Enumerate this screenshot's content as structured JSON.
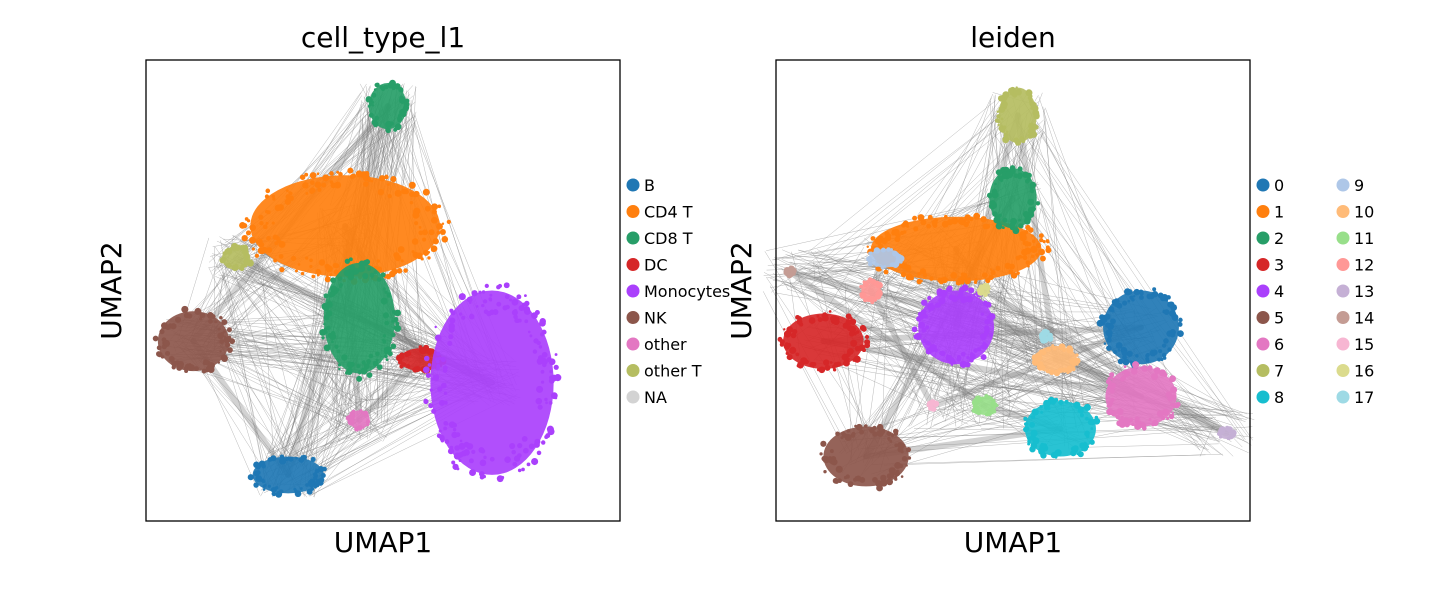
{
  "chart_data": [
    {
      "type": "scatter",
      "title": "cell_type_l1",
      "xlabel": "UMAP1",
      "ylabel": "UMAP2",
      "xticks": [],
      "yticks": [],
      "legend_position": "right",
      "legend_columns": 1,
      "edges": "gray connectivity lines between clusters",
      "categories": [
        {
          "name": "B",
          "color": "#1f77b4"
        },
        {
          "name": "CD4 T",
          "color": "#ff7f0e"
        },
        {
          "name": "CD8 T",
          "color": "#279e68"
        },
        {
          "name": "DC",
          "color": "#d62728"
        },
        {
          "name": "Monocytes",
          "color": "#aa40fc"
        },
        {
          "name": "NK",
          "color": "#8c564b"
        },
        {
          "name": "other",
          "color": "#e377c2"
        },
        {
          "name": "other T",
          "color": "#b5bd61"
        },
        {
          "name": "NA",
          "color": "#d3d3d3"
        }
      ],
      "clusters": [
        {
          "category": "B",
          "x": 0.3,
          "y": 0.1
        },
        {
          "category": "CD4 T",
          "x": 0.42,
          "y": 0.64
        },
        {
          "category": "CD8 T",
          "x": 0.45,
          "y": 0.44
        },
        {
          "category": "CD8 T",
          "x": 0.51,
          "y": 0.9
        },
        {
          "category": "DC",
          "x": 0.58,
          "y": 0.35
        },
        {
          "category": "Monocytes",
          "x": 0.73,
          "y": 0.3
        },
        {
          "category": "NK",
          "x": 0.1,
          "y": 0.39
        },
        {
          "category": "other",
          "x": 0.45,
          "y": 0.22
        },
        {
          "category": "other T",
          "x": 0.19,
          "y": 0.57
        }
      ]
    },
    {
      "type": "scatter",
      "title": "leiden",
      "xlabel": "UMAP1",
      "ylabel": "UMAP2",
      "xticks": [],
      "yticks": [],
      "legend_position": "right",
      "legend_columns": 2,
      "edges": "gray connectivity lines between clusters",
      "categories": [
        {
          "name": "0",
          "color": "#1f77b4"
        },
        {
          "name": "1",
          "color": "#ff7f0e"
        },
        {
          "name": "2",
          "color": "#279e68"
        },
        {
          "name": "3",
          "color": "#d62728"
        },
        {
          "name": "4",
          "color": "#aa40fc"
        },
        {
          "name": "5",
          "color": "#8c564b"
        },
        {
          "name": "6",
          "color": "#e377c2"
        },
        {
          "name": "7",
          "color": "#b5bd61"
        },
        {
          "name": "8",
          "color": "#17becf"
        },
        {
          "name": "9",
          "color": "#aec7e8"
        },
        {
          "name": "10",
          "color": "#ffbb78"
        },
        {
          "name": "11",
          "color": "#98df8a"
        },
        {
          "name": "12",
          "color": "#ff9896"
        },
        {
          "name": "13",
          "color": "#c5b0d5"
        },
        {
          "name": "14",
          "color": "#c49c94"
        },
        {
          "name": "15",
          "color": "#f7b6d2"
        },
        {
          "name": "16",
          "color": "#dbdb8d"
        },
        {
          "name": "17",
          "color": "#9edae5"
        }
      ],
      "clusters": [
        {
          "category": "0",
          "x": 0.77,
          "y": 0.42
        },
        {
          "category": "1",
          "x": 0.38,
          "y": 0.59
        },
        {
          "category": "2",
          "x": 0.5,
          "y": 0.7
        },
        {
          "category": "3",
          "x": 0.1,
          "y": 0.39
        },
        {
          "category": "4",
          "x": 0.38,
          "y": 0.42
        },
        {
          "category": "5",
          "x": 0.19,
          "y": 0.14
        },
        {
          "category": "6",
          "x": 0.77,
          "y": 0.27
        },
        {
          "category": "7",
          "x": 0.51,
          "y": 0.88
        },
        {
          "category": "8",
          "x": 0.6,
          "y": 0.2
        },
        {
          "category": "9",
          "x": 0.23,
          "y": 0.57
        },
        {
          "category": "10",
          "x": 0.59,
          "y": 0.35
        },
        {
          "category": "11",
          "x": 0.44,
          "y": 0.25
        },
        {
          "category": "12",
          "x": 0.2,
          "y": 0.5
        },
        {
          "category": "13",
          "x": 0.95,
          "y": 0.19
        },
        {
          "category": "14",
          "x": 0.03,
          "y": 0.54
        },
        {
          "category": "15",
          "x": 0.33,
          "y": 0.25
        },
        {
          "category": "16",
          "x": 0.44,
          "y": 0.5
        },
        {
          "category": "17",
          "x": 0.57,
          "y": 0.4
        }
      ]
    }
  ]
}
